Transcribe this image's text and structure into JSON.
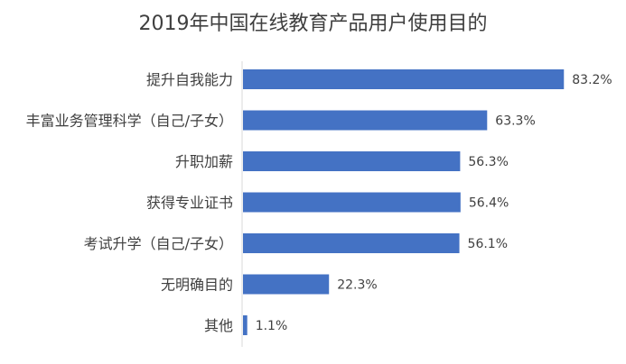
{
  "chart_data": {
    "type": "bar",
    "orientation": "horizontal",
    "title": "2019年中国在线教育产品用户使用目的",
    "categories": [
      "提升自我能力",
      "丰富业务管理科学（自己/子女）",
      "升职加薪",
      "获得专业证书",
      "考试升学（自己/子女）",
      "无明确目的",
      "其他"
    ],
    "values": [
      83.2,
      63.3,
      56.3,
      56.4,
      56.1,
      22.3,
      1.1
    ],
    "value_labels": [
      "83.2%",
      "63.3%",
      "56.3%",
      "56.4%",
      "56.1%",
      "22.3%",
      "1.1%"
    ],
    "unit": "%",
    "xlim": [
      0,
      100
    ],
    "bar_color": "#4472C4",
    "grid": false,
    "legend": "none"
  }
}
